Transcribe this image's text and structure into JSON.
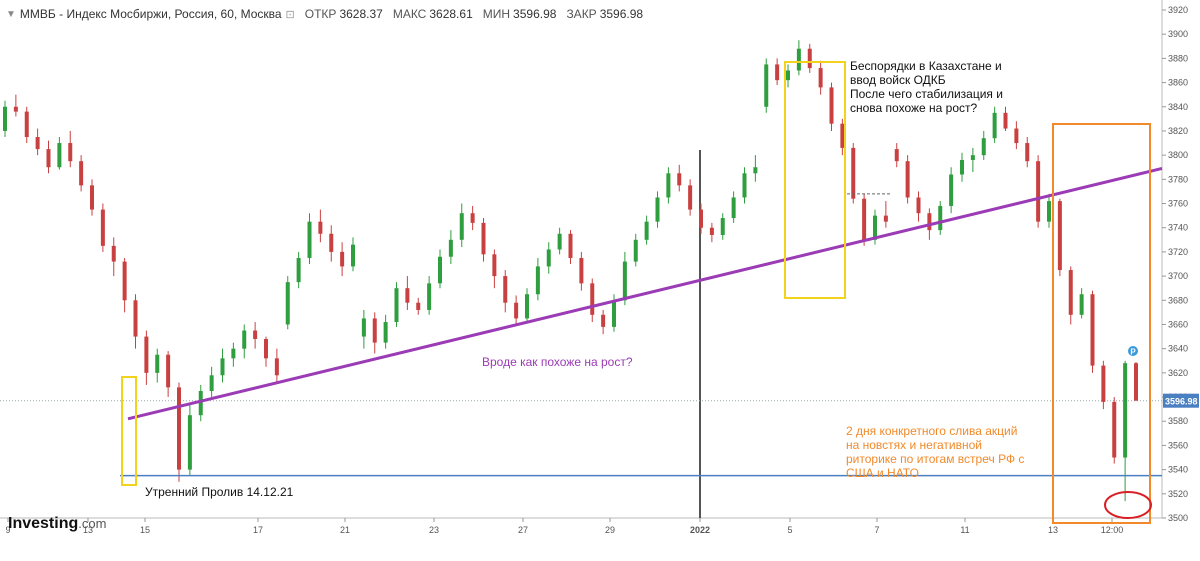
{
  "header": {
    "symbol": "ММВБ - Индекс Мосбиржи, Россия, 60, Москва",
    "open_label": "ОТКР",
    "open_value": "3628.37",
    "high_label": "МАКС",
    "high_value": "3628.61",
    "low_label": "МИН",
    "low_value": "3596.98",
    "close_label": "ЗАКР",
    "close_value": "3596.98"
  },
  "brand": {
    "name": "Investing",
    "suffix": ".com"
  },
  "colors": {
    "up": "#2e9e3f",
    "down": "#c94040",
    "trendline": "#9b3bb5",
    "support": "#4a7fc1",
    "yellow_box": "#f2d21b",
    "orange_box": "#f08a2b",
    "red_ellipse": "#d81f26",
    "price_tag": "#4a7fc1"
  },
  "chart_data": {
    "type": "candlestick",
    "y_range": [
      3500,
      3920
    ],
    "y_ticks": [
      3500,
      3520,
      3540,
      3560,
      3580,
      3600,
      3620,
      3640,
      3660,
      3680,
      3700,
      3720,
      3740,
      3760,
      3780,
      3800,
      3820,
      3840,
      3860,
      3880,
      3900,
      3920
    ],
    "x_tick_labels": [
      "9",
      "13",
      "15",
      "17",
      "21",
      "23",
      "27",
      "29",
      "2022",
      "5",
      "7",
      "11",
      "13",
      "12:00"
    ],
    "last_price": "3596.98",
    "support_level": 3535,
    "trendline": {
      "from": {
        "date": "14.12.21",
        "price": 3582
      },
      "to": {
        "date": "13.01.22",
        "price": 3789
      }
    },
    "annotations": [
      {
        "text": "Беспорядки в Казахстане и\nввод войск ОДКБ\nПосле чего стабилизация и\nснова похоже на рост?",
        "color": "#111111"
      },
      {
        "text": "Вроде как похоже на рост?",
        "color": "#9b3bb5"
      },
      {
        "text": "2 дня конкретного слива акций\nна новстях и негативной\nриторике по итогам встреч РФ с\nСША и НАТО",
        "color": "#f08a2b"
      },
      {
        "text": "Утренний Пролив 14.12.21",
        "color": "#111111"
      }
    ],
    "candles": [
      [
        3820,
        3845,
        3815,
        3840
      ],
      [
        3840,
        3850,
        3832,
        3836
      ],
      [
        3836,
        3840,
        3810,
        3815
      ],
      [
        3815,
        3822,
        3800,
        3805
      ],
      [
        3805,
        3812,
        3785,
        3790
      ],
      [
        3790,
        3815,
        3788,
        3810
      ],
      [
        3810,
        3820,
        3790,
        3795
      ],
      [
        3795,
        3800,
        3770,
        3775
      ],
      [
        3775,
        3780,
        3750,
        3755
      ],
      [
        3755,
        3760,
        3720,
        3725
      ],
      [
        3725,
        3732,
        3700,
        3712
      ],
      [
        3712,
        3715,
        3670,
        3680
      ],
      [
        3680,
        3685,
        3640,
        3650
      ],
      [
        3650,
        3655,
        3610,
        3620
      ],
      [
        3620,
        3640,
        3612,
        3635
      ],
      [
        3635,
        3638,
        3600,
        3608
      ],
      [
        3608,
        3612,
        3530,
        3540
      ],
      [
        3540,
        3595,
        3535,
        3585
      ],
      [
        3585,
        3610,
        3580,
        3605
      ],
      [
        3605,
        3625,
        3600,
        3618
      ],
      [
        3618,
        3640,
        3612,
        3632
      ],
      [
        3632,
        3645,
        3625,
        3640
      ],
      [
        3640,
        3660,
        3632,
        3655
      ],
      [
        3655,
        3662,
        3640,
        3648
      ],
      [
        3648,
        3650,
        3625,
        3632
      ],
      [
        3632,
        3640,
        3612,
        3618
      ],
      [
        3660,
        3700,
        3656,
        3695
      ],
      [
        3695,
        3720,
        3690,
        3715
      ],
      [
        3715,
        3752,
        3710,
        3745
      ],
      [
        3745,
        3755,
        3728,
        3735
      ],
      [
        3735,
        3742,
        3712,
        3720
      ],
      [
        3720,
        3728,
        3700,
        3708
      ],
      [
        3708,
        3732,
        3704,
        3726
      ],
      [
        3650,
        3672,
        3640,
        3665
      ],
      [
        3665,
        3670,
        3636,
        3645
      ],
      [
        3645,
        3668,
        3640,
        3662
      ],
      [
        3662,
        3695,
        3658,
        3690
      ],
      [
        3690,
        3700,
        3672,
        3678
      ],
      [
        3678,
        3682,
        3668,
        3672
      ],
      [
        3672,
        3700,
        3668,
        3694
      ],
      [
        3694,
        3722,
        3690,
        3716
      ],
      [
        3716,
        3738,
        3710,
        3730
      ],
      [
        3730,
        3760,
        3724,
        3752
      ],
      [
        3752,
        3758,
        3738,
        3744
      ],
      [
        3744,
        3748,
        3712,
        3718
      ],
      [
        3718,
        3722,
        3690,
        3700
      ],
      [
        3700,
        3705,
        3670,
        3678
      ],
      [
        3678,
        3684,
        3660,
        3665
      ],
      [
        3665,
        3690,
        3662,
        3685
      ],
      [
        3685,
        3715,
        3680,
        3708
      ],
      [
        3708,
        3728,
        3702,
        3722
      ],
      [
        3722,
        3740,
        3718,
        3735
      ],
      [
        3735,
        3738,
        3710,
        3715
      ],
      [
        3715,
        3720,
        3688,
        3694
      ],
      [
        3694,
        3698,
        3662,
        3668
      ],
      [
        3668,
        3672,
        3652,
        3658
      ],
      [
        3658,
        3685,
        3654,
        3680
      ],
      [
        3680,
        3720,
        3676,
        3712
      ],
      [
        3712,
        3735,
        3708,
        3730
      ],
      [
        3730,
        3750,
        3726,
        3745
      ],
      [
        3745,
        3770,
        3740,
        3765
      ],
      [
        3765,
        3790,
        3760,
        3785
      ],
      [
        3785,
        3792,
        3770,
        3775
      ],
      [
        3775,
        3780,
        3750,
        3755
      ],
      [
        3755,
        3760,
        3735,
        3740
      ],
      [
        3740,
        3744,
        3728,
        3734
      ],
      [
        3734,
        3752,
        3730,
        3748
      ],
      [
        3748,
        3770,
        3744,
        3765
      ],
      [
        3765,
        3790,
        3760,
        3785
      ],
      [
        3785,
        3800,
        3778,
        3790
      ],
      [
        3840,
        3880,
        3835,
        3875
      ],
      [
        3875,
        3880,
        3858,
        3862
      ],
      [
        3862,
        3875,
        3856,
        3870
      ],
      [
        3870,
        3895,
        3866,
        3888
      ],
      [
        3888,
        3892,
        3868,
        3872
      ],
      [
        3872,
        3878,
        3850,
        3856
      ],
      [
        3856,
        3860,
        3820,
        3826
      ],
      [
        3826,
        3830,
        3800,
        3806
      ],
      [
        3806,
        3810,
        3760,
        3764
      ],
      [
        3764,
        3768,
        3725,
        3730
      ],
      [
        3730,
        3755,
        3726,
        3750
      ],
      [
        3750,
        3762,
        3740,
        3745
      ],
      [
        3805,
        3810,
        3790,
        3795
      ],
      [
        3795,
        3800,
        3760,
        3765
      ],
      [
        3765,
        3770,
        3745,
        3752
      ],
      [
        3752,
        3756,
        3730,
        3738
      ],
      [
        3738,
        3762,
        3734,
        3758
      ],
      [
        3758,
        3790,
        3752,
        3784
      ],
      [
        3784,
        3802,
        3778,
        3796
      ],
      [
        3796,
        3806,
        3786,
        3800
      ],
      [
        3800,
        3820,
        3796,
        3814
      ],
      [
        3814,
        3840,
        3810,
        3835
      ],
      [
        3835,
        3840,
        3820,
        3822
      ],
      [
        3822,
        3828,
        3805,
        3810
      ],
      [
        3810,
        3815,
        3790,
        3795
      ],
      [
        3795,
        3800,
        3740,
        3745
      ],
      [
        3745,
        3768,
        3740,
        3762
      ],
      [
        3762,
        3764,
        3700,
        3705
      ],
      [
        3705,
        3708,
        3660,
        3668
      ],
      [
        3668,
        3690,
        3665,
        3685
      ],
      [
        3685,
        3688,
        3620,
        3626
      ],
      [
        3626,
        3630,
        3590,
        3596
      ],
      [
        3596,
        3600,
        3545,
        3550
      ],
      [
        3550,
        3630,
        3514,
        3628
      ],
      [
        3628,
        3629,
        3597,
        3597
      ]
    ]
  }
}
